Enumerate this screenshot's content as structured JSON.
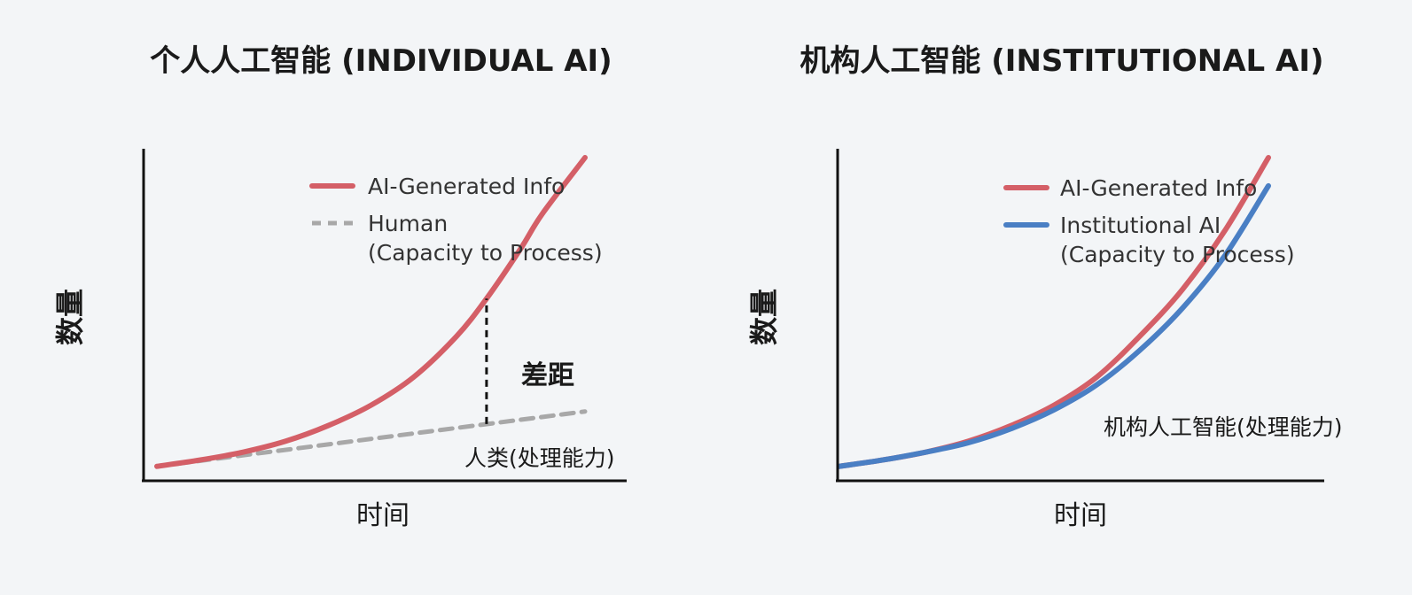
{
  "colors": {
    "background": "#f3f5f7",
    "ai_generated": "#d45f67",
    "human": "#a8a8a8",
    "institutional": "#4a7fc4",
    "axis": "#111111"
  },
  "chart_data": [
    {
      "type": "line",
      "title": "个人人工智能 (INDIVIDUAL AI)",
      "xlabel": "时间",
      "ylabel": "数量",
      "xlim": [
        0,
        10
      ],
      "ylim": [
        0,
        100
      ],
      "grid": false,
      "legend_position": "top-right",
      "series": [
        {
          "name": "AI-Generated Info",
          "style": "solid",
          "color": "#d45f67",
          "x": [
            0,
            1,
            2,
            3,
            4,
            5,
            6,
            7,
            7.7,
            8.5,
            9,
            10
          ],
          "y": [
            1.5,
            3.5,
            6,
            9.5,
            14.5,
            21,
            30,
            43,
            55,
            71,
            82,
            100
          ]
        },
        {
          "name": "Human\n(Capacity to Process)",
          "legend_lines": [
            "Human",
            "(Capacity to Process)"
          ],
          "style": "dashed",
          "color": "#a8a8a8",
          "x": [
            0,
            10
          ],
          "y": [
            1.5,
            19
          ]
        }
      ],
      "annotations": {
        "gap": {
          "text": "差距",
          "x": 7.7,
          "y_from": 15,
          "y_to": 55
        },
        "human_label": {
          "text": "人类(处理能力)",
          "x": 7.3,
          "y": 5
        }
      }
    },
    {
      "type": "line",
      "title": "机构人工智能 (INSTITUTIONAL AI)",
      "xlabel": "时间",
      "ylabel": "数量",
      "xlim": [
        0,
        10
      ],
      "ylim": [
        0,
        100
      ],
      "grid": false,
      "legend_position": "top-right",
      "series": [
        {
          "name": "AI-Generated Info",
          "style": "solid",
          "color": "#d45f67",
          "x": [
            0,
            1,
            2,
            3,
            4,
            5,
            6,
            7,
            8,
            9,
            10
          ],
          "y": [
            1.5,
            3.5,
            6,
            9.5,
            14.5,
            21,
            30,
            43,
            58,
            77,
            100
          ]
        },
        {
          "name": "Institutional AI\n(Capacity to Process)",
          "legend_lines": [
            "Institutional AI",
            "(Capacity to Process)"
          ],
          "style": "solid",
          "color": "#4a7fc4",
          "x": [
            0,
            1,
            2,
            3,
            4,
            5,
            6,
            7,
            8,
            9,
            10
          ],
          "y": [
            1.5,
            3.5,
            6,
            9,
            13.5,
            19.5,
            27.5,
            38.5,
            52,
            69,
            91
          ]
        }
      ],
      "annotations": {
        "capacity_label": {
          "text": "机构人工智能(处理能力)",
          "x": 6.1,
          "y": 14
        }
      }
    }
  ]
}
